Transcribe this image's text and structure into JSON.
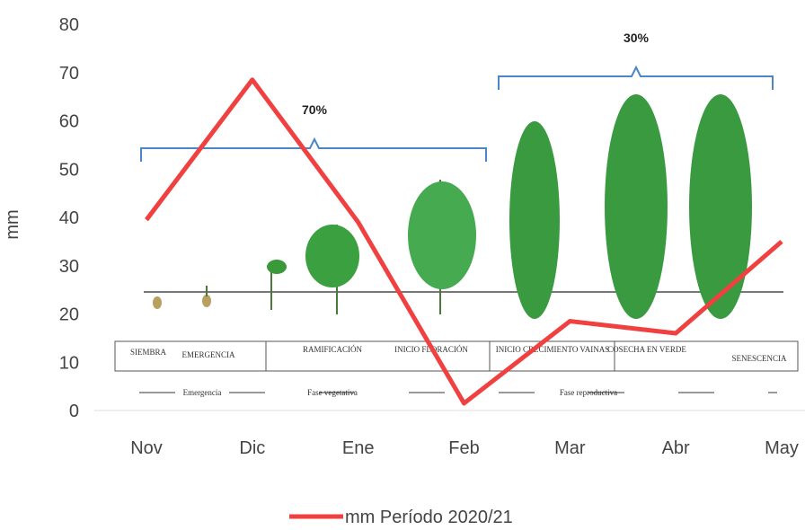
{
  "chart_data": {
    "type": "line",
    "y_label": "mm",
    "categories": [
      "Nov",
      "Dic",
      "Ene",
      "Feb",
      "Mar",
      "Abr",
      "May"
    ],
    "series": [
      {
        "name": "mm Período 2020/21",
        "color": "#f04040",
        "values": [
          39.5,
          68.5,
          39,
          1.5,
          18.5,
          16,
          35
        ]
      }
    ],
    "ylim": [
      0,
      80
    ],
    "yticks": [
      0,
      10,
      20,
      30,
      40,
      50,
      60,
      70,
      80
    ],
    "grid": false,
    "annotations": [
      "70%",
      "30%"
    ],
    "stages": [
      "SIEMBRA",
      "EMERGENCIA",
      "RAMIFICACIÓN",
      "INICIO FLORACIÓN",
      "INICIO CRECIMIENTO VAINAS",
      "COSECHA EN VERDE",
      "SENESCENCIA"
    ],
    "phases": [
      "Emergencia",
      "Fase vegetativa",
      "Fase reproductiva"
    ],
    "legend": "bottom"
  }
}
